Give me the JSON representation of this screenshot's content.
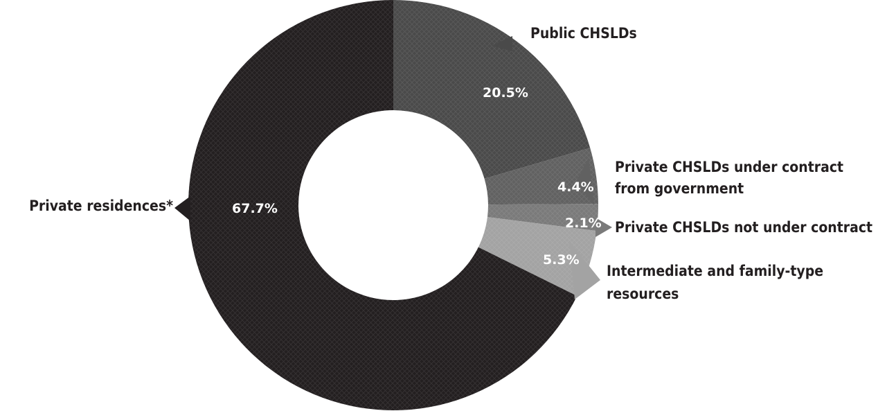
{
  "chart_data": {
    "type": "pie",
    "variant": "donut",
    "title": "",
    "legend": "none",
    "slices": [
      {
        "label": "Public CHSLDs",
        "label_lines": [
          "Public CHSLDs"
        ],
        "value": 20.5,
        "value_label": "20.5%",
        "color": "#4a4a4a"
      },
      {
        "label": "Private CHSLDs under contract from government",
        "label_lines": [
          "Private CHSLDs under contract",
          "from government"
        ],
        "value": 4.4,
        "value_label": "4.4%",
        "color": "#616161"
      },
      {
        "label": "Private CHSLDs not under contract",
        "label_lines": [
          "Private CHSLDs not under contract"
        ],
        "value": 2.1,
        "value_label": "2.1%",
        "color": "#7a7a7a"
      },
      {
        "label": "Intermediate and family-type resources",
        "label_lines": [
          "Intermediate and family-type",
          "resources"
        ],
        "value": 5.3,
        "value_label": "5.3%",
        "color": "#a3a3a3"
      },
      {
        "label": "Private residences*",
        "label_lines": [
          "Private residences*"
        ],
        "value": 67.7,
        "value_label": "67.7%",
        "color": "#231f20"
      }
    ]
  }
}
